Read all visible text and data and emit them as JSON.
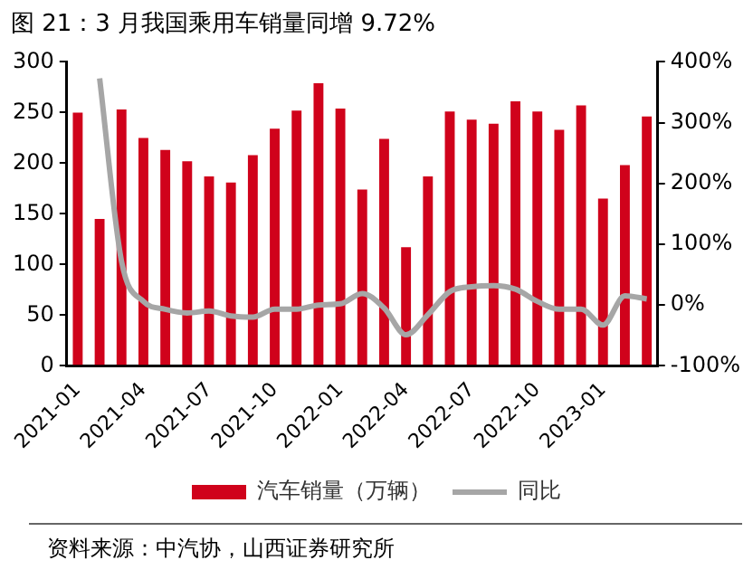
{
  "chart_data": {
    "type": "bar",
    "title": "图 21：3 月我国乘用车销量同增 9.72%",
    "categories": [
      "2021-01",
      null,
      null,
      "2021-04",
      null,
      null,
      "2021-07",
      null,
      null,
      "2021-10",
      null,
      null,
      "2022-01",
      null,
      null,
      "2022-04",
      null,
      null,
      "2022-07",
      null,
      null,
      "2022-10",
      null,
      null,
      "2023-01",
      null,
      null
    ],
    "series": [
      {
        "name": "汽车销量（万辆）",
        "color": "#d0021b",
        "values": [
          250,
          145,
          253,
          225,
          213,
          202,
          187,
          181,
          208,
          234,
          252,
          279,
          254,
          174,
          224,
          117,
          187,
          251,
          243,
          239,
          261,
          251,
          233,
          257,
          165,
          198,
          246
        ]
      },
      {
        "name": "同比",
        "type": "line",
        "axis": "y2",
        "color": "#a6a6a6",
        "values": [
          null,
          373,
          72,
          6,
          -7,
          -13,
          -10,
          -18,
          -20,
          -7,
          -7,
          0,
          2,
          19,
          -5,
          -49,
          -16,
          22,
          30,
          32,
          26,
          6,
          -7,
          -7,
          -33,
          15,
          10
        ]
      }
    ],
    "ylim": [
      0,
      300
    ],
    "yticks": [
      0,
      50,
      100,
      150,
      200,
      250,
      300
    ],
    "y2lim": [
      -100,
      400
    ],
    "y2ticks": [
      {
        "value": -100,
        "label": "-100%"
      },
      {
        "value": 0,
        "label": "0%"
      },
      {
        "value": 100,
        "label": "100%"
      },
      {
        "value": 200,
        "label": "200%"
      },
      {
        "value": 300,
        "label": "300%"
      },
      {
        "value": 400,
        "label": "400%"
      }
    ],
    "grid": false,
    "legend": "bottom",
    "marker": "none",
    "line_style": "solid",
    "annotations": [
      "资料来源：中汽协，山西证券研究所"
    ]
  }
}
